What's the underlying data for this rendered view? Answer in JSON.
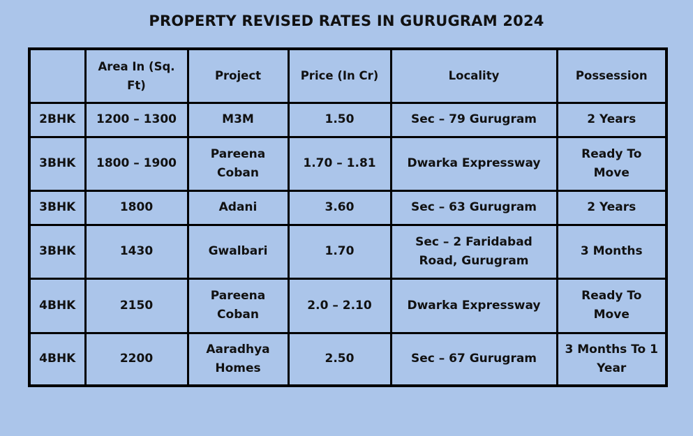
{
  "chart_data": {
    "type": "table",
    "title": "PROPERTY REVISED RATES IN GURUGRAM 2024",
    "columns": [
      "",
      "Area In (Sq. Ft)",
      "Project",
      "Price (In Cr)",
      "Locality",
      "Possession"
    ],
    "rows": [
      [
        "2BHK",
        "1200 – 1300",
        "M3M",
        "1.50",
        "Sec – 79 Gurugram",
        "2 Years"
      ],
      [
        "3BHK",
        "1800 – 1900",
        "Pareena Coban",
        "1.70 – 1.81",
        "Dwarka Expressway",
        "Ready To Move"
      ],
      [
        "3BHK",
        "1800",
        "Adani",
        "3.60",
        "Sec – 63 Gurugram",
        "2 Years"
      ],
      [
        "3BHK",
        "1430",
        "Gwalbari",
        "1.70",
        "Sec – 2 Faridabad Road, Gurugram",
        "3 Months"
      ],
      [
        "4BHK",
        "2150",
        "Pareena Coban",
        "2.0 – 2.10",
        "Dwarka Expressway",
        "Ready To Move"
      ],
      [
        "4BHK",
        "2200",
        "Aaradhya Homes",
        "2.50",
        "Sec – 67 Gurugram",
        "3 Months To 1 Year"
      ]
    ]
  }
}
